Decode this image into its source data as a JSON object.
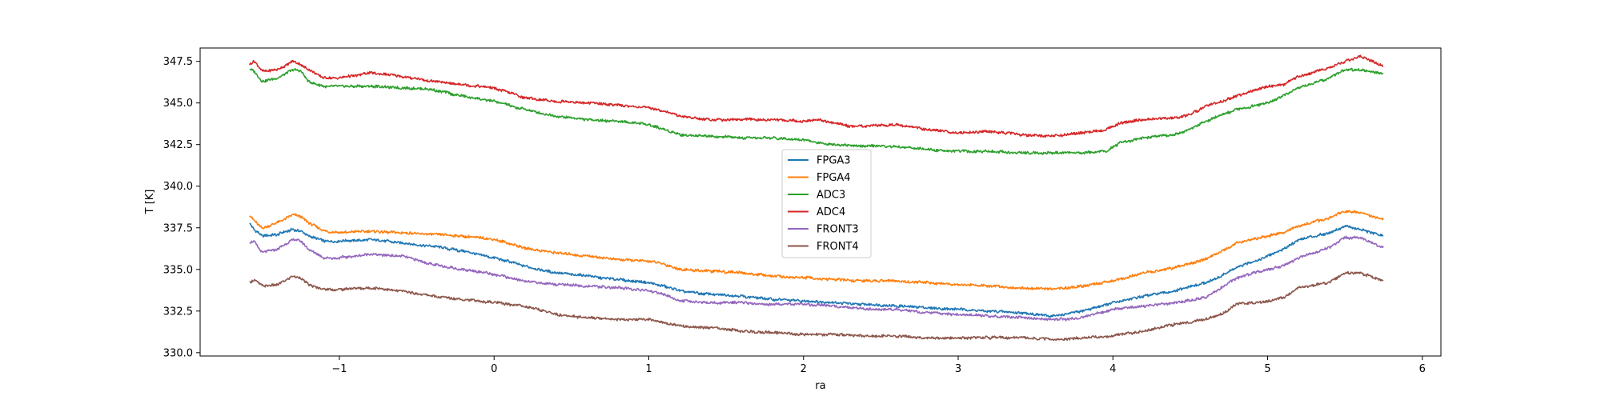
{
  "chart_data": {
    "type": "line",
    "xlabel": "ra",
    "ylabel": "T [K]",
    "xlim": [
      -1.9,
      6.12
    ],
    "ylim": [
      329.8,
      348.3
    ],
    "x_ticks": [
      -1,
      0,
      1,
      2,
      3,
      4,
      5,
      6
    ],
    "y_ticks": [
      330.0,
      332.5,
      335.0,
      337.5,
      340.0,
      342.5,
      345.0,
      347.5
    ],
    "x_tick_labels": [
      "−1",
      "0",
      "1",
      "2",
      "3",
      "4",
      "5",
      "6"
    ],
    "y_tick_labels": [
      "330.0",
      "332.5",
      "335.0",
      "337.5",
      "340.0",
      "342.5",
      "345.0",
      "347.5"
    ],
    "grid": false,
    "legend_position": "center",
    "series": [
      {
        "name": "FPGA3",
        "color": "#1f77b4",
        "x": [
          -1.58,
          -1.55,
          -1.5,
          -1.4,
          -1.3,
          -1.25,
          -1.2,
          -1.1,
          -1.0,
          -0.8,
          -0.6,
          -0.4,
          -0.2,
          0.0,
          0.2,
          0.4,
          0.6,
          0.8,
          1.0,
          1.1,
          1.2,
          1.4,
          1.6,
          1.8,
          2.0,
          2.2,
          2.4,
          2.6,
          2.8,
          3.0,
          3.2,
          3.4,
          3.6,
          3.7,
          3.8,
          4.0,
          4.2,
          4.4,
          4.6,
          4.7,
          4.8,
          5.0,
          5.1,
          5.2,
          5.4,
          5.5,
          5.6,
          5.75
        ],
        "y": [
          337.8,
          337.4,
          337.0,
          337.1,
          337.4,
          337.3,
          337.0,
          336.7,
          336.7,
          336.8,
          336.6,
          336.4,
          336.1,
          335.7,
          335.2,
          334.8,
          334.6,
          334.4,
          334.2,
          334.0,
          333.7,
          333.5,
          333.4,
          333.2,
          333.1,
          333.0,
          332.9,
          332.8,
          332.7,
          332.6,
          332.5,
          332.4,
          332.2,
          332.3,
          332.5,
          333.0,
          333.4,
          333.7,
          334.2,
          334.6,
          335.1,
          335.8,
          336.2,
          336.8,
          337.2,
          337.6,
          337.4,
          337.0
        ]
      },
      {
        "name": "FPGA4",
        "color": "#ff7f0e",
        "x": [
          -1.58,
          -1.55,
          -1.5,
          -1.4,
          -1.3,
          -1.25,
          -1.2,
          -1.1,
          -1.0,
          -0.8,
          -0.6,
          -0.4,
          -0.2,
          0.0,
          0.2,
          0.4,
          0.6,
          0.8,
          1.0,
          1.1,
          1.2,
          1.4,
          1.6,
          1.8,
          2.0,
          2.2,
          2.4,
          2.6,
          2.8,
          3.0,
          3.2,
          3.4,
          3.6,
          3.7,
          3.8,
          4.0,
          4.2,
          4.4,
          4.6,
          4.7,
          4.8,
          5.0,
          5.1,
          5.2,
          5.4,
          5.5,
          5.6,
          5.75
        ],
        "y": [
          338.3,
          337.9,
          337.5,
          337.8,
          338.3,
          338.2,
          337.8,
          337.3,
          337.2,
          337.3,
          337.2,
          337.1,
          337.0,
          336.8,
          336.3,
          336.0,
          335.8,
          335.6,
          335.5,
          335.3,
          335.0,
          334.9,
          334.8,
          334.6,
          334.5,
          334.4,
          334.3,
          334.3,
          334.2,
          334.1,
          334.0,
          333.9,
          333.8,
          333.9,
          334.0,
          334.3,
          334.8,
          335.1,
          335.6,
          336.1,
          336.6,
          337.0,
          337.2,
          337.6,
          338.1,
          338.5,
          338.4,
          338.0
        ]
      },
      {
        "name": "ADC3",
        "color": "#2ca02c",
        "x": [
          -1.58,
          -1.55,
          -1.5,
          -1.4,
          -1.3,
          -1.25,
          -1.2,
          -1.1,
          -1.0,
          -0.8,
          -0.6,
          -0.4,
          -0.2,
          0.0,
          0.2,
          0.4,
          0.6,
          0.8,
          1.0,
          1.1,
          1.2,
          1.4,
          1.6,
          1.8,
          2.0,
          2.1,
          2.2,
          2.4,
          2.6,
          2.8,
          3.0,
          3.2,
          3.4,
          3.6,
          3.7,
          3.8,
          3.95,
          4.05,
          4.2,
          4.4,
          4.5,
          4.6,
          4.8,
          5.0,
          5.1,
          5.2,
          5.4,
          5.5,
          5.6,
          5.75
        ],
        "y": [
          347.0,
          346.9,
          346.3,
          346.5,
          347.0,
          346.9,
          346.3,
          346.0,
          346.0,
          346.0,
          345.9,
          345.8,
          345.4,
          345.1,
          344.6,
          344.2,
          344.0,
          343.9,
          343.7,
          343.4,
          343.1,
          343.0,
          342.9,
          342.9,
          342.8,
          342.6,
          342.5,
          342.4,
          342.4,
          342.2,
          342.1,
          342.1,
          342.0,
          342.0,
          342.0,
          342.0,
          342.1,
          342.6,
          342.9,
          343.1,
          343.4,
          343.9,
          344.6,
          345.0,
          345.4,
          345.9,
          346.5,
          347.0,
          347.0,
          346.7
        ]
      },
      {
        "name": "ADC4",
        "color": "#d62728",
        "x": [
          -1.58,
          -1.55,
          -1.5,
          -1.4,
          -1.3,
          -1.25,
          -1.2,
          -1.1,
          -1.0,
          -0.8,
          -0.6,
          -0.4,
          -0.2,
          0.0,
          0.2,
          0.4,
          0.6,
          0.8,
          1.0,
          1.1,
          1.2,
          1.4,
          1.6,
          1.8,
          2.0,
          2.1,
          2.2,
          2.3,
          2.4,
          2.6,
          2.8,
          3.0,
          3.2,
          3.4,
          3.6,
          3.7,
          3.8,
          3.95,
          4.05,
          4.2,
          4.4,
          4.5,
          4.6,
          4.8,
          5.0,
          5.1,
          5.2,
          5.4,
          5.5,
          5.6,
          5.75
        ],
        "y": [
          347.3,
          347.5,
          346.9,
          347.0,
          347.5,
          347.3,
          347.0,
          346.5,
          346.5,
          346.8,
          346.6,
          346.3,
          346.1,
          345.9,
          345.3,
          345.1,
          345.0,
          344.9,
          344.7,
          344.5,
          344.2,
          344.0,
          344.0,
          344.0,
          343.9,
          344.0,
          343.8,
          343.6,
          343.6,
          343.7,
          343.4,
          343.2,
          343.3,
          343.1,
          343.0,
          343.1,
          343.2,
          343.4,
          343.8,
          344.0,
          344.1,
          344.3,
          344.8,
          345.4,
          346.0,
          346.1,
          346.6,
          347.1,
          347.5,
          347.8,
          347.2
        ]
      },
      {
        "name": "FRONT3",
        "color": "#9467bd",
        "x": [
          -1.58,
          -1.55,
          -1.5,
          -1.4,
          -1.3,
          -1.25,
          -1.2,
          -1.1,
          -1.0,
          -0.8,
          -0.6,
          -0.4,
          -0.2,
          0.0,
          0.2,
          0.4,
          0.6,
          0.8,
          1.0,
          1.1,
          1.2,
          1.4,
          1.6,
          1.8,
          2.0,
          2.2,
          2.4,
          2.6,
          2.8,
          3.0,
          3.2,
          3.4,
          3.6,
          3.7,
          3.8,
          4.0,
          4.2,
          4.4,
          4.6,
          4.7,
          4.8,
          5.0,
          5.1,
          5.2,
          5.4,
          5.5,
          5.6,
          5.75
        ],
        "y": [
          336.6,
          336.7,
          336.0,
          336.2,
          336.8,
          336.7,
          336.2,
          335.7,
          335.7,
          335.9,
          335.8,
          335.3,
          335.0,
          334.7,
          334.3,
          334.1,
          334.0,
          333.9,
          333.7,
          333.5,
          333.1,
          333.0,
          333.0,
          332.9,
          332.9,
          332.8,
          332.6,
          332.6,
          332.4,
          332.3,
          332.2,
          332.1,
          332.0,
          332.0,
          332.1,
          332.6,
          332.8,
          333.0,
          333.3,
          333.9,
          334.5,
          335.0,
          335.2,
          335.7,
          336.3,
          336.9,
          336.9,
          336.3
        ]
      },
      {
        "name": "FRONT4",
        "color": "#8c564b",
        "x": [
          -1.58,
          -1.55,
          -1.5,
          -1.4,
          -1.3,
          -1.25,
          -1.2,
          -1.1,
          -1.0,
          -0.8,
          -0.6,
          -0.4,
          -0.2,
          0.0,
          0.2,
          0.4,
          0.6,
          0.8,
          1.0,
          1.1,
          1.2,
          1.4,
          1.6,
          1.8,
          2.0,
          2.2,
          2.4,
          2.6,
          2.8,
          3.0,
          3.2,
          3.4,
          3.6,
          3.7,
          3.8,
          4.0,
          4.2,
          4.4,
          4.6,
          4.7,
          4.8,
          5.0,
          5.1,
          5.2,
          5.4,
          5.5,
          5.6,
          5.75
        ],
        "y": [
          334.2,
          334.4,
          334.0,
          334.1,
          334.6,
          334.5,
          334.1,
          333.8,
          333.8,
          333.9,
          333.7,
          333.4,
          333.2,
          333.0,
          332.8,
          332.3,
          332.1,
          332.0,
          332.0,
          331.8,
          331.6,
          331.5,
          331.3,
          331.2,
          331.1,
          331.1,
          331.0,
          331.0,
          330.9,
          330.9,
          330.9,
          330.9,
          330.8,
          330.8,
          330.9,
          331.0,
          331.3,
          331.7,
          332.0,
          332.3,
          332.9,
          333.1,
          333.3,
          333.9,
          334.2,
          334.8,
          334.8,
          334.3
        ]
      }
    ]
  }
}
